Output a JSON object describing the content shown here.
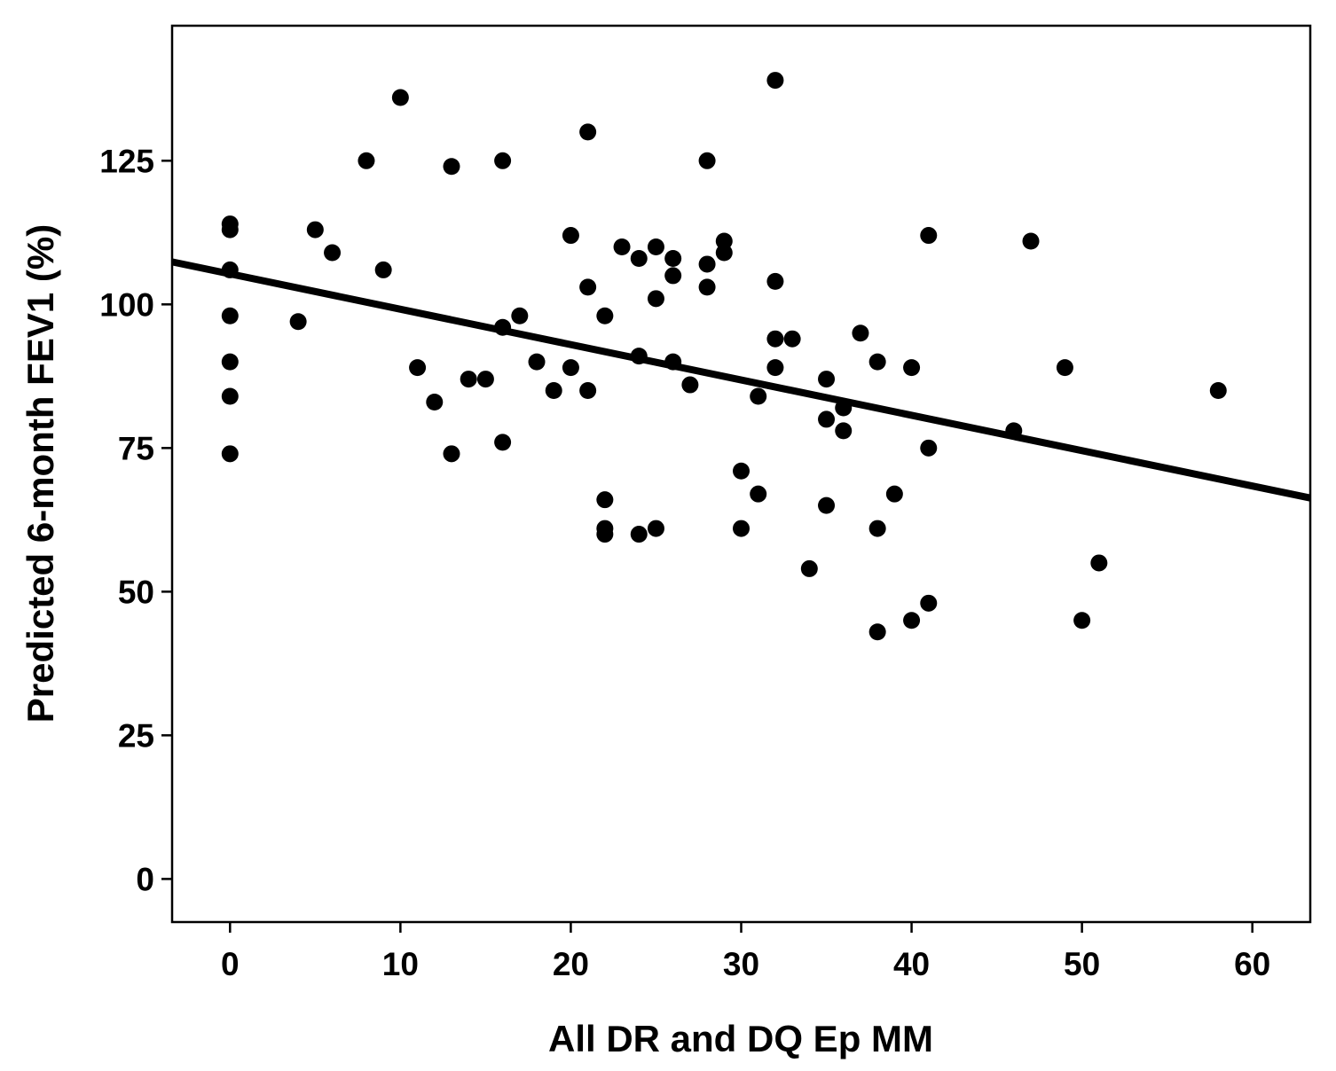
{
  "chart_data": {
    "type": "scatter",
    "title": "",
    "xlabel": "All DR and DQ Ep MM",
    "ylabel": "Predicted 6-month FEV1 (%)",
    "xlim": [
      -3.4,
      63.4
    ],
    "ylim": [
      -7.5,
      148.5
    ],
    "xticks": [
      0,
      10,
      20,
      30,
      40,
      50,
      60
    ],
    "yticks": [
      0,
      25,
      50,
      75,
      100,
      125
    ],
    "grid": false,
    "legend": "none",
    "colors": {
      "points": "#000000",
      "line": "#000000",
      "frame": "#000000"
    },
    "fit_line": {
      "x": [
        -3.4,
        63.4
      ],
      "y": [
        107.4,
        66.3
      ]
    },
    "points": [
      [
        0,
        114
      ],
      [
        0,
        113
      ],
      [
        0,
        106
      ],
      [
        0,
        98
      ],
      [
        0,
        90
      ],
      [
        0,
        84
      ],
      [
        0,
        74
      ],
      [
        4,
        97
      ],
      [
        5,
        113
      ],
      [
        6,
        109
      ],
      [
        8,
        125
      ],
      [
        9,
        106
      ],
      [
        10,
        136
      ],
      [
        11,
        89
      ],
      [
        12,
        83
      ],
      [
        13,
        124
      ],
      [
        13,
        74
      ],
      [
        14,
        87
      ],
      [
        15,
        87
      ],
      [
        16,
        125
      ],
      [
        16,
        96
      ],
      [
        16,
        76
      ],
      [
        17,
        98
      ],
      [
        18,
        90
      ],
      [
        19,
        85
      ],
      [
        20,
        112
      ],
      [
        20,
        89
      ],
      [
        21,
        130
      ],
      [
        21,
        103
      ],
      [
        21,
        85
      ],
      [
        22,
        98
      ],
      [
        22,
        66
      ],
      [
        22,
        61
      ],
      [
        22,
        60
      ],
      [
        23,
        110
      ],
      [
        24,
        108
      ],
      [
        24,
        91
      ],
      [
        24,
        60
      ],
      [
        25,
        110
      ],
      [
        25,
        101
      ],
      [
        25,
        61
      ],
      [
        26,
        108
      ],
      [
        26,
        105
      ],
      [
        26,
        90
      ],
      [
        27,
        86
      ],
      [
        28,
        125
      ],
      [
        28,
        107
      ],
      [
        28,
        103
      ],
      [
        29,
        111
      ],
      [
        29,
        109
      ],
      [
        30,
        71
      ],
      [
        30,
        61
      ],
      [
        31,
        84
      ],
      [
        31,
        67
      ],
      [
        32,
        139
      ],
      [
        32,
        104
      ],
      [
        32,
        94
      ],
      [
        32,
        89
      ],
      [
        33,
        94
      ],
      [
        34,
        54
      ],
      [
        35,
        87
      ],
      [
        35,
        80
      ],
      [
        35,
        65
      ],
      [
        36,
        82
      ],
      [
        36,
        78
      ],
      [
        37,
        95
      ],
      [
        38,
        90
      ],
      [
        38,
        61
      ],
      [
        38,
        43
      ],
      [
        39,
        67
      ],
      [
        40,
        89
      ],
      [
        40,
        45
      ],
      [
        41,
        112
      ],
      [
        41,
        75
      ],
      [
        41,
        48
      ],
      [
        46,
        78
      ],
      [
        47,
        111
      ],
      [
        49,
        89
      ],
      [
        50,
        45
      ],
      [
        51,
        55
      ],
      [
        58,
        85
      ]
    ]
  }
}
